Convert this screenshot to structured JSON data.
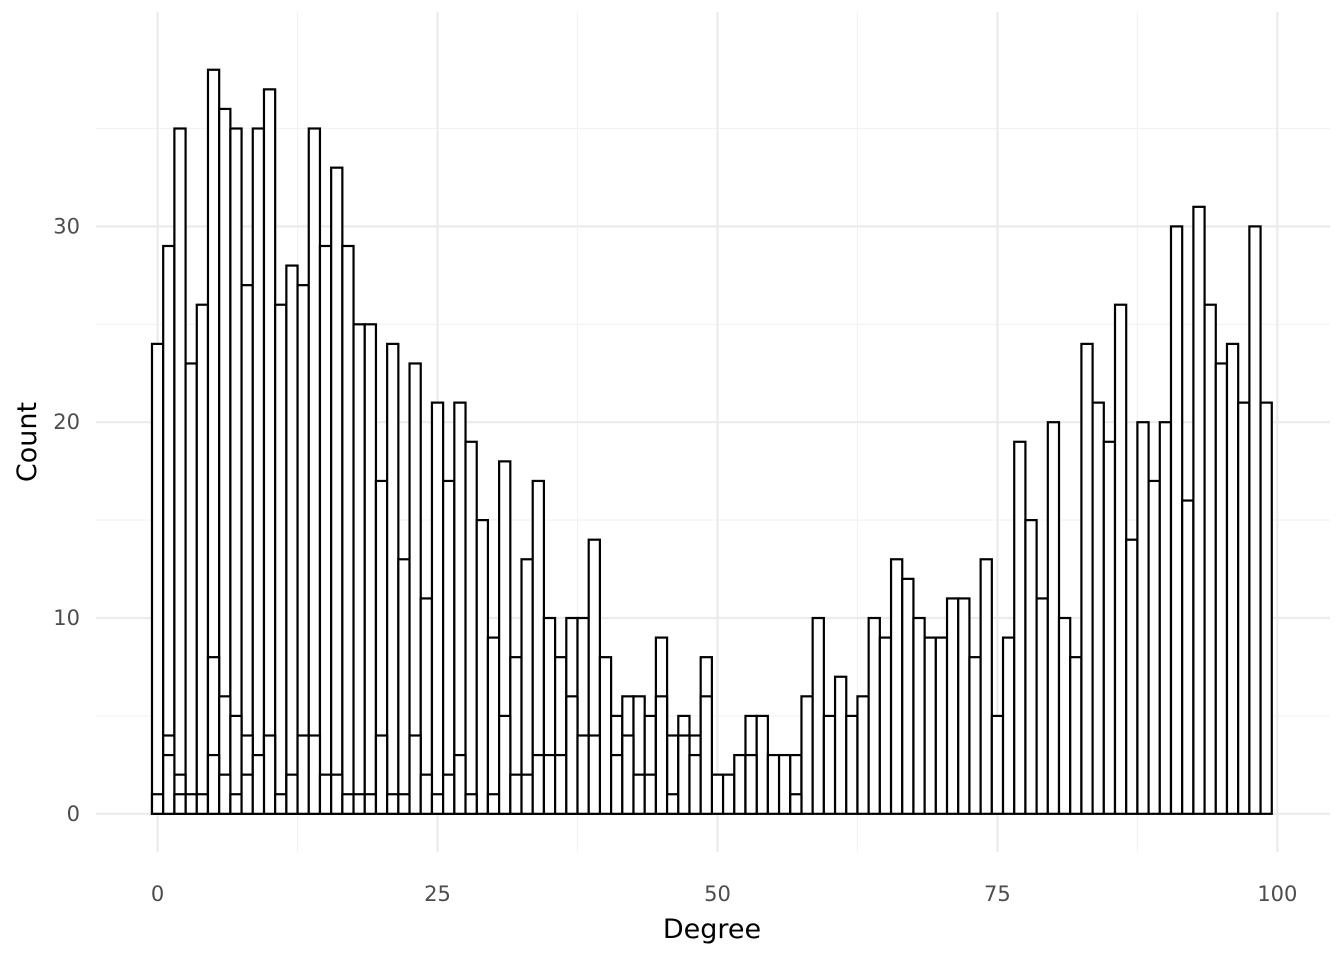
{
  "chart_data": {
    "type": "bar",
    "title": "",
    "xlabel": "Degree",
    "ylabel": "Count",
    "xlim": [
      -5.5,
      104.7
    ],
    "ylim": [
      -1.95,
      40.95
    ],
    "x_ticks": [
      0,
      25,
      50,
      75,
      100
    ],
    "y_ticks": [
      0,
      10,
      20,
      30
    ],
    "bin_width": 1,
    "grid": true,
    "legend": "none",
    "series": [
      {
        "x": [
          0,
          1,
          2,
          3,
          4,
          5,
          6,
          7,
          8,
          9,
          10,
          11,
          12,
          13,
          14,
          15,
          16,
          17,
          18,
          19,
          20,
          21,
          22,
          23,
          24,
          25,
          26,
          27,
          28,
          29,
          30,
          31,
          32,
          33,
          34,
          35,
          36,
          37,
          38,
          39,
          40,
          41,
          42,
          43,
          44,
          45,
          46,
          47,
          48,
          49,
          50,
          51,
          52,
          53,
          54,
          55,
          56,
          57,
          58,
          59,
          60,
          61,
          62,
          63,
          64,
          65,
          66,
          67,
          68,
          69,
          70,
          71,
          72,
          73,
          74,
          75,
          76,
          77,
          78,
          79,
          80,
          81,
          82,
          83,
          84,
          85,
          86,
          87,
          88,
          89,
          90,
          91,
          92,
          93,
          94,
          95,
          96,
          97,
          98,
          99
        ],
        "values": [
          24,
          29,
          35,
          23,
          26,
          38,
          36,
          35,
          27,
          35,
          37,
          26,
          28,
          27,
          35,
          29,
          33,
          29,
          25,
          25,
          17,
          24,
          13,
          23,
          11,
          21,
          17,
          21,
          19,
          15,
          9,
          18,
          8,
          13,
          17,
          10,
          8,
          10,
          10,
          14,
          8,
          5,
          6,
          6,
          5,
          9,
          4,
          5,
          4,
          8,
          2,
          2,
          3,
          5,
          5,
          3,
          3,
          3,
          6,
          10,
          5,
          7,
          5,
          6,
          10,
          9,
          13,
          12,
          10,
          9,
          9,
          11,
          11,
          8,
          13,
          5,
          9,
          19,
          15,
          11,
          20,
          10,
          8,
          24,
          21,
          19,
          26,
          14,
          20,
          17,
          20,
          30,
          16,
          31,
          26,
          23,
          24,
          21,
          30,
          21
        ]
      },
      {
        "x": [
          0,
          1,
          2,
          3,
          4,
          5,
          6,
          7,
          8,
          9,
          10,
          11,
          12,
          13,
          14,
          15,
          16,
          17,
          18,
          19,
          20,
          21,
          22,
          23,
          24,
          25,
          26,
          27,
          28,
          29,
          30,
          31,
          32,
          33,
          34,
          35,
          36,
          37,
          38,
          39,
          40,
          41,
          42,
          43,
          44,
          45,
          46,
          47,
          48,
          49
        ],
        "values": [
          1,
          4,
          2,
          1,
          1,
          8,
          6,
          5,
          4,
          2,
          4,
          1,
          2,
          4,
          4,
          2,
          2,
          1,
          1,
          1,
          4,
          1,
          1,
          4,
          2,
          1,
          2,
          3,
          1,
          0,
          1,
          5,
          2,
          2,
          3,
          3,
          3,
          6,
          4,
          4,
          0,
          3,
          4,
          2,
          2,
          6,
          1,
          4,
          3,
          6
        ]
      },
      {
        "x": [
          0,
          1,
          2,
          3,
          4,
          5,
          6,
          7,
          8,
          9,
          10,
          11,
          12,
          13,
          14,
          15,
          16,
          17,
          18,
          19,
          20,
          21,
          22,
          23,
          24,
          25,
          26,
          27,
          28,
          29,
          30,
          31,
          32,
          33,
          34,
          35,
          36,
          37,
          38,
          39,
          40,
          41,
          42,
          43,
          44,
          45,
          46,
          47,
          48,
          49
        ],
        "values": [
          0,
          3,
          1,
          0,
          0,
          3,
          2,
          1,
          2,
          3,
          0,
          0,
          0,
          0,
          0,
          0,
          0,
          0,
          0,
          0,
          0,
          0,
          0,
          0,
          0,
          0,
          0,
          0,
          0,
          0,
          0,
          0,
          0,
          0,
          0,
          0,
          0,
          0,
          0,
          0,
          0,
          0,
          0,
          0,
          0,
          0,
          0,
          0,
          0,
          0
        ]
      },
      {
        "x": [
          50,
          51,
          52,
          53,
          54,
          55,
          56,
          57,
          58,
          59,
          60,
          61,
          62,
          63,
          64,
          65,
          66,
          67,
          68,
          69,
          70,
          71,
          72,
          73,
          74,
          75,
          76,
          77,
          78,
          79,
          80,
          81,
          82,
          83,
          84,
          85,
          86,
          87,
          88,
          89,
          90,
          91,
          92,
          93,
          94,
          95,
          96,
          97,
          98,
          99
        ],
        "values": [
          0,
          0,
          0,
          3,
          0,
          0,
          0,
          1,
          0,
          0,
          0,
          0,
          0,
          0,
          0,
          0,
          0,
          0,
          0,
          0,
          0,
          0,
          0,
          0,
          0,
          0,
          0,
          0,
          0,
          0,
          0,
          0,
          0,
          0,
          0,
          0,
          0,
          0,
          0,
          0,
          0,
          0,
          0,
          0,
          0,
          0,
          0,
          0,
          0,
          0
        ]
      }
    ]
  }
}
